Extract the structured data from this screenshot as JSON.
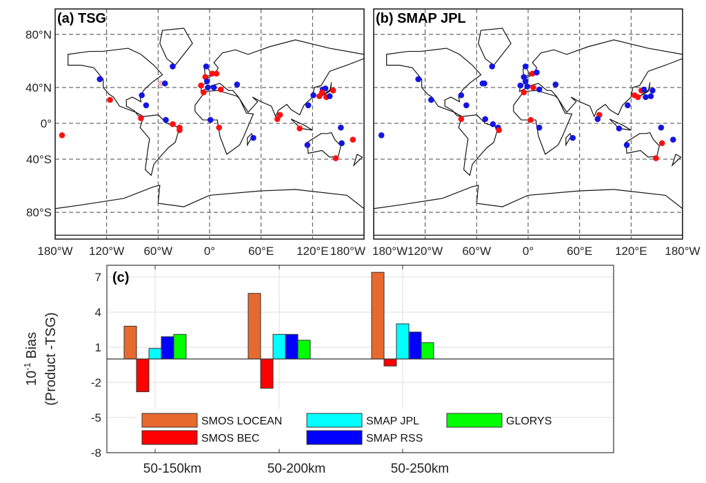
{
  "chart_data": [
    {
      "type": "scatter",
      "title": "(a) TSG",
      "projection": "miller",
      "xlim": [
        -180,
        180
      ],
      "ylim": [
        -90,
        90
      ],
      "lon_ticks": [
        -180,
        -120,
        -60,
        0,
        60,
        120,
        180
      ],
      "lon_tick_labels": [
        "180°W",
        "120°W",
        "60°W",
        "0°",
        "60°E",
        "120°E",
        "180°W"
      ],
      "lat_ticks": [
        80,
        40,
        0,
        -40,
        -80
      ],
      "lat_tick_labels": [
        "80°N",
        "40°N",
        "0°",
        "40°S",
        "80°S"
      ],
      "grid": true,
      "colors": {
        "red": "#ff1010",
        "blue": "#1515e0",
        "pink": "#f4b8b8"
      },
      "points": [
        [
          -172,
          -14,
          "red"
        ],
        [
          -128,
          48,
          "blue"
        ],
        [
          -116,
          27,
          "red"
        ],
        [
          -43,
          59,
          "blue"
        ],
        [
          -57,
          44,
          "pink"
        ],
        [
          -52,
          44,
          "blue"
        ],
        [
          -79,
          32,
          "blue"
        ],
        [
          -74,
          21,
          "blue"
        ],
        [
          -80,
          6,
          "red"
        ],
        [
          -51,
          4,
          "blue"
        ],
        [
          -43,
          -1,
          "red"
        ],
        [
          -35,
          -5,
          "red"
        ],
        [
          -35,
          -8,
          "red"
        ],
        [
          -4,
          59,
          "blue"
        ],
        [
          3,
          53,
          "red"
        ],
        [
          8,
          53,
          "red"
        ],
        [
          -5,
          50,
          "red"
        ],
        [
          -3,
          46,
          "blue"
        ],
        [
          -10,
          42,
          "red"
        ],
        [
          -2,
          40,
          "blue"
        ],
        [
          5,
          40,
          "blue"
        ],
        [
          13,
          38,
          "red"
        ],
        [
          -7,
          35,
          "red"
        ],
        [
          32,
          43,
          "blue"
        ],
        [
          1,
          4,
          "blue"
        ],
        [
          11,
          -5,
          "red"
        ],
        [
          51,
          -17,
          "blue"
        ],
        [
          82,
          10,
          "red"
        ],
        [
          79,
          5,
          "red"
        ],
        [
          105,
          -6,
          "red"
        ],
        [
          115,
          21,
          "blue"
        ],
        [
          121,
          32,
          "blue"
        ],
        [
          128,
          31,
          "red"
        ],
        [
          132,
          38,
          "blue"
        ],
        [
          135,
          39,
          "blue"
        ],
        [
          131,
          35,
          "red"
        ],
        [
          136,
          30,
          "red"
        ],
        [
          140,
          31,
          "blue"
        ],
        [
          144,
          37,
          "red"
        ],
        [
          153,
          -5,
          "blue"
        ],
        [
          167,
          -19,
          "red"
        ],
        [
          114,
          -25,
          "blue"
        ],
        [
          154,
          -23,
          "blue"
        ],
        [
          147,
          -39,
          "red"
        ]
      ]
    },
    {
      "type": "scatter",
      "title": "(b) SMAP JPL",
      "projection": "miller",
      "xlim": [
        -180,
        180
      ],
      "ylim": [
        -90,
        90
      ],
      "lon_ticks": [
        -180,
        -120,
        -60,
        0,
        60,
        120,
        180
      ],
      "lon_tick_labels": [
        "180°W",
        "120°W",
        "60°W",
        "0°",
        "60°E",
        "120°E",
        "180°W"
      ],
      "grid": true,
      "colors": {
        "red": "#ff1010",
        "blue": "#1515e0"
      },
      "points": [
        [
          -171,
          -14,
          "blue"
        ],
        [
          -128,
          48,
          "blue"
        ],
        [
          -113,
          27,
          "blue"
        ],
        [
          -42,
          59,
          "blue"
        ],
        [
          -53,
          44,
          "blue"
        ],
        [
          -51,
          44,
          "blue"
        ],
        [
          -78,
          32,
          "blue"
        ],
        [
          -72,
          21,
          "blue"
        ],
        [
          -78,
          5,
          "red"
        ],
        [
          -50,
          5,
          "blue"
        ],
        [
          -41,
          -1,
          "blue"
        ],
        [
          -35,
          -5,
          "blue"
        ],
        [
          -34,
          -8,
          "red"
        ],
        [
          -3,
          59,
          "blue"
        ],
        [
          5,
          53,
          "red"
        ],
        [
          10,
          54,
          "blue"
        ],
        [
          -5,
          50,
          "blue"
        ],
        [
          -3,
          46,
          "blue"
        ],
        [
          -9,
          42,
          "blue"
        ],
        [
          -1,
          41,
          "blue"
        ],
        [
          6,
          40,
          "red"
        ],
        [
          13,
          38,
          "blue"
        ],
        [
          -5,
          35,
          "red"
        ],
        [
          32,
          43,
          "blue"
        ],
        [
          3,
          4,
          "red"
        ],
        [
          13,
          -5,
          "blue"
        ],
        [
          52,
          -17,
          "blue"
        ],
        [
          83,
          10,
          "red"
        ],
        [
          81,
          5,
          "blue"
        ],
        [
          106,
          -6,
          "blue"
        ],
        [
          116,
          21,
          "blue"
        ],
        [
          124,
          32,
          "red"
        ],
        [
          128,
          30,
          "red"
        ],
        [
          132,
          37,
          "red"
        ],
        [
          135,
          38,
          "blue"
        ],
        [
          137,
          30,
          "blue"
        ],
        [
          143,
          31,
          "blue"
        ],
        [
          145,
          37,
          "blue"
        ],
        [
          155,
          -5,
          "blue"
        ],
        [
          169,
          -19,
          "blue"
        ],
        [
          115,
          -25,
          "blue"
        ],
        [
          156,
          -23,
          "red"
        ],
        [
          149,
          -39,
          "red"
        ]
      ]
    },
    {
      "type": "bar",
      "title": "(c)",
      "ylabel_line1": "10",
      "ylabel_sup": "-1",
      "ylabel_rest": " Bias",
      "ylabel_line2": "(Product -TSG)",
      "categories": [
        "50-150km",
        "50-200km",
        "50-250km"
      ],
      "ylim": [
        -8,
        8
      ],
      "yticks": [
        7,
        4,
        1,
        -2,
        -5,
        -8
      ],
      "grid": true,
      "legend_placement": "bottom-inside",
      "series": [
        {
          "name": "SMOS LOCEAN",
          "color": "#e8692e",
          "values": [
            2.8,
            5.6,
            7.4
          ]
        },
        {
          "name": "SMOS BEC",
          "color": "#ff0000",
          "values": [
            -2.8,
            -2.5,
            -0.6
          ]
        },
        {
          "name": "SMAP JPL",
          "color": "#00ffff",
          "values": [
            0.9,
            2.1,
            3.0
          ]
        },
        {
          "name": "SMAP RSS",
          "color": "#0000ff",
          "values": [
            1.9,
            2.1,
            2.3
          ]
        },
        {
          "name": "GLORYS",
          "color": "#00ff00",
          "values": [
            2.1,
            1.6,
            1.4
          ]
        }
      ]
    }
  ]
}
